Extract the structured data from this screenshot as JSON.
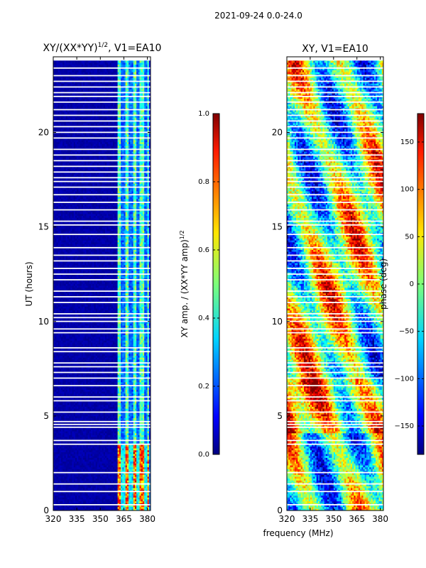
{
  "figure": {
    "suptitle": "2021-09-24 0.0-24.0",
    "xlabel_shared": "frequency (MHz)"
  },
  "chart_data": [
    {
      "type": "heatmap",
      "title": "XY/(XX*YY)^1/2, V1=EA10",
      "title_main": "XY/(XX*YY)",
      "title_exp": "1/2",
      "title_tail": ", V1=EA10",
      "xlabel": "",
      "ylabel": "UT (hours)",
      "xlim": [
        320,
        382
      ],
      "ylim": [
        0,
        24
      ],
      "xticks": [
        320,
        335,
        350,
        365,
        380
      ],
      "yticks": [
        0,
        5,
        10,
        15,
        20
      ],
      "colorbar": {
        "label": "XY amp. / (XX*YY amp)^1/2",
        "label_main": "XY amp. / (XX*YY amp)",
        "label_exp": "1/2",
        "range": [
          0.0,
          1.0
        ],
        "ticks": [
          "0.0",
          "0.2",
          "0.4",
          "0.6",
          "0.8",
          "1.0"
        ],
        "colormap": "jet"
      }
    },
    {
      "type": "heatmap",
      "title": "XY, V1=EA10",
      "xlabel": "frequency (MHz)",
      "ylabel": "",
      "xlim": [
        320,
        382
      ],
      "ylim": [
        0,
        24
      ],
      "xticks": [
        320,
        335,
        350,
        365,
        380
      ],
      "yticks": [
        0,
        5,
        10,
        15,
        20
      ],
      "colorbar": {
        "label": "phase (deg)",
        "range": [
          -180,
          180
        ],
        "ticks": [
          "−150",
          "−100",
          "−50",
          "0",
          "50",
          "100",
          "150"
        ],
        "colormap": "jet"
      }
    }
  ]
}
